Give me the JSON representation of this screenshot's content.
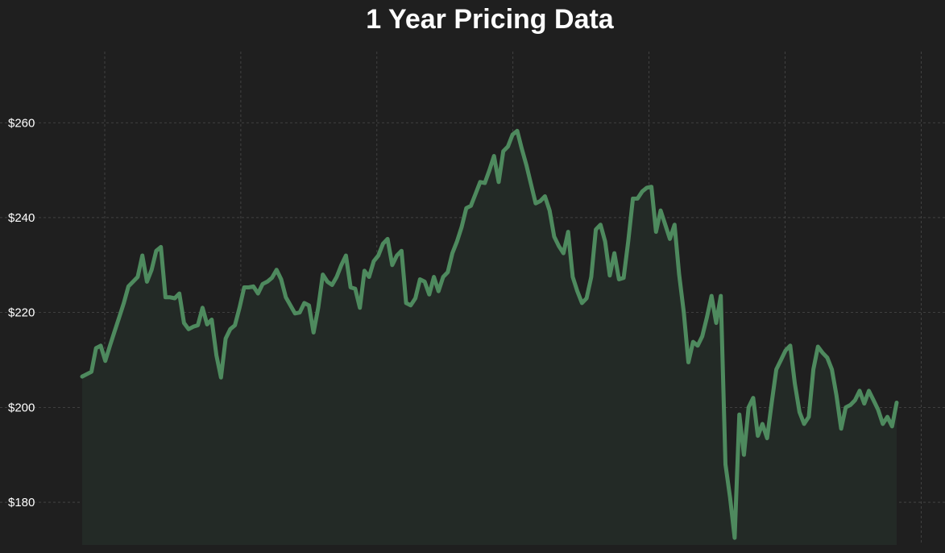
{
  "chart_data": {
    "type": "area",
    "title": "1 Year Pricing Data",
    "xlabel": "",
    "ylabel": "",
    "ylim": [
      171,
      275
    ],
    "yticks": [
      180,
      200,
      220,
      240,
      260
    ],
    "ytick_labels": [
      "$180",
      "$200",
      "$220",
      "$240",
      "$260"
    ],
    "x_gridlines": 7,
    "grid": true,
    "legend": "none",
    "colors": {
      "background": "#1f1f1f",
      "line": "#4e8a5e",
      "fill": "#232a26",
      "grid": "#4a4a4a",
      "text": "#ffffff"
    },
    "series": [
      {
        "values": [
          206.5,
          207.0,
          207.5,
          212.5,
          213.0,
          209.8,
          213.0,
          216.0,
          219.0,
          222.0,
          225.5,
          226.5,
          227.5,
          232.0,
          226.5,
          229.0,
          233.0,
          233.8,
          223.2,
          223.2,
          223.0,
          224.0,
          217.8,
          216.5,
          217.0,
          217.3,
          221.0,
          217.5,
          218.5,
          211.0,
          206.3,
          214.5,
          216.5,
          217.3,
          221.0,
          225.3,
          225.3,
          225.5,
          224.0,
          226.0,
          226.5,
          227.3,
          229.0,
          227.0,
          223.2,
          221.5,
          219.8,
          220.0,
          222.0,
          221.5,
          215.8,
          221.0,
          228.0,
          226.5,
          225.8,
          227.5,
          230.0,
          232.0,
          225.3,
          225.0,
          221.0,
          228.8,
          227.5,
          230.8,
          232.0,
          234.5,
          235.5,
          230.0,
          232.0,
          233.0,
          222.0,
          221.5,
          223.0,
          227.0,
          226.5,
          223.8,
          227.5,
          224.5,
          227.5,
          228.5,
          232.5,
          235.0,
          238.0,
          242.0,
          242.5,
          245.0,
          247.5,
          247.3,
          250.0,
          253.0,
          247.5,
          254.0,
          255.0,
          257.5,
          258.3,
          254.5,
          251.0,
          247.0,
          243.0,
          243.5,
          244.5,
          241.5,
          236.0,
          234.0,
          232.5,
          237.0,
          227.5,
          224.5,
          222.0,
          223.0,
          227.5,
          237.5,
          238.5,
          235.0,
          227.8,
          232.5,
          227.0,
          227.3,
          235.0,
          244.0,
          244.0,
          245.5,
          246.3,
          246.5,
          237.0,
          241.5,
          238.5,
          235.5,
          238.5,
          228.0,
          220.0,
          209.5,
          213.8,
          213.0,
          215.0,
          219.0,
          223.5,
          217.8,
          223.5,
          188.0,
          181.0,
          172.5,
          198.5,
          190.0,
          200.0,
          202.0,
          194.0,
          196.5,
          193.5,
          201.0,
          208.0,
          210.0,
          212.0,
          213.0,
          205.0,
          199.0,
          196.5,
          198.0,
          208.0,
          212.8,
          211.5,
          210.5,
          208.0,
          202.5,
          195.5,
          200.0,
          200.5,
          201.5,
          203.5,
          200.8,
          203.5,
          201.5,
          199.5,
          196.5,
          198.0,
          196.0,
          201.0
        ]
      }
    ]
  }
}
